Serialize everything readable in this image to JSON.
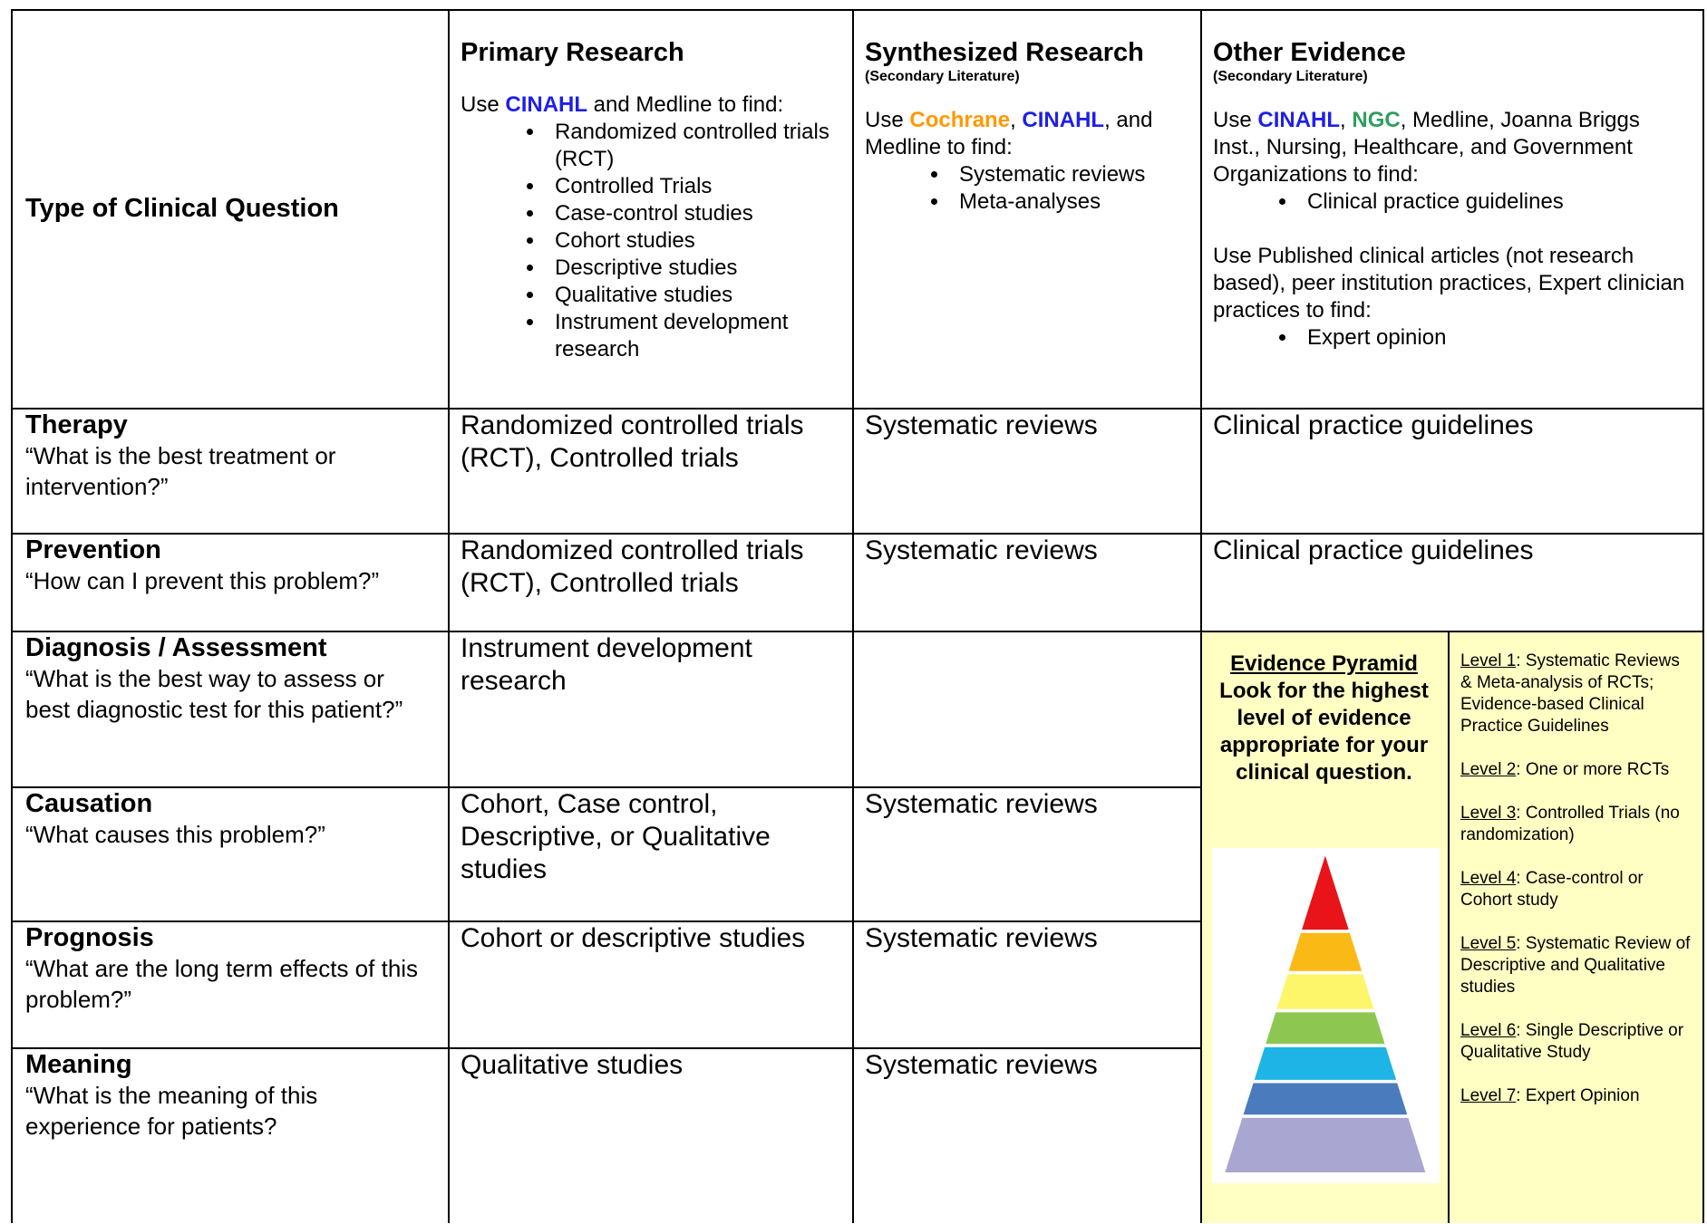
{
  "header": {
    "question_type": "Type of Clinical Question",
    "columns": [
      {
        "title": "Primary Research",
        "groups": [
          {
            "intro": [
              {
                "text": "Use "
              },
              {
                "text": "CINAHL",
                "color": "#1f1fe6"
              },
              {
                "text": " and Medline to find:"
              }
            ],
            "bullets": [
              "Randomized controlled trials (RCT)",
              "Controlled Trials",
              "Case-control studies",
              "Cohort studies",
              "Descriptive studies",
              "Qualitative studies",
              "Instrument development research"
            ]
          }
        ]
      },
      {
        "title": "Synthesized Research",
        "subtitle": "(Secondary Literature)",
        "groups": [
          {
            "intro": [
              {
                "text": "Use "
              },
              {
                "text": "Cochrane",
                "color": "#ff9900"
              },
              {
                "text": ", "
              },
              {
                "text": "CINAHL",
                "color": "#1f1fe6"
              },
              {
                "text": ", and Medline to find:"
              }
            ],
            "bullets": [
              "Systematic reviews",
              "Meta-analyses"
            ]
          }
        ]
      },
      {
        "title": "Other Evidence",
        "subtitle": "(Secondary Literature)",
        "groups": [
          {
            "intro": [
              {
                "text": "Use "
              },
              {
                "text": "CINAHL",
                "color": "#1f1fe6"
              },
              {
                "text": ", "
              },
              {
                "text": "NGC",
                "color": "#2e9e5e"
              },
              {
                "text": ", Medline, Joanna Briggs Inst., Nursing, Healthcare, and Government Organizations to find:"
              }
            ],
            "bullets": [
              "Clinical practice guidelines"
            ]
          },
          {
            "intro": [
              {
                "text": "Use Published clinical articles (not research based), peer institution practices, Expert clinician practices to find:"
              }
            ],
            "bullets": [
              "Expert opinion"
            ]
          }
        ]
      }
    ]
  },
  "rows": [
    {
      "name": "Therapy",
      "question": "“What is the best treatment or intervention?”",
      "primary": "Randomized controlled trials (RCT), Controlled trials",
      "synthesized": "Systematic reviews",
      "other": "Clinical practice guidelines"
    },
    {
      "name": "Prevention",
      "question": "“How can I prevent this problem?”",
      "primary": "Randomized controlled trials (RCT), Controlled trials",
      "synthesized": "Systematic reviews",
      "other": "Clinical practice guidelines"
    },
    {
      "name": "Diagnosis / Assessment",
      "question": "“What is the best way to assess or best diagnostic test for this patient?”",
      "primary": "Instrument development research",
      "synthesized": null
    },
    {
      "name": "Causation",
      "question": "“What causes this problem?”",
      "primary": "Cohort, Case control, Descriptive, or Qualitative studies",
      "synthesized": "Systematic reviews"
    },
    {
      "name": "Prognosis",
      "question": "“What are the long term effects of this problem?”",
      "primary": "Cohort or descriptive studies",
      "synthesized": "Systematic reviews"
    },
    {
      "name": "Meaning",
      "question": "“What is the meaning of this experience for patients?",
      "primary": "Qualitative studies",
      "synthesized": "Systematic reviews"
    }
  ],
  "pyramid_panel": {
    "title": "Evidence Pyramid",
    "text": "Look for the highest level of evidence appropriate for your clinical question.",
    "levels": [
      {
        "label": "Level 1",
        "description": ":  Systematic Reviews & Meta-analysis of RCTs; Evidence-based Clinical Practice Guidelines"
      },
      {
        "label": "Level 2",
        "description": ":  One or more RCTs"
      },
      {
        "label": "Level 3",
        "description": ":  Controlled Trials (no randomization)"
      },
      {
        "label": "Level 4",
        "description": ":  Case-control or Cohort study"
      },
      {
        "label": "Level 5",
        "description": ":  Systematic Review of Descriptive and Qualitative studies"
      },
      {
        "label": "Level 6",
        "description": ":  Single Descriptive or Qualitative Study"
      },
      {
        "label": "Level 7",
        "description": ":  Expert Opinion"
      }
    ]
  }
}
